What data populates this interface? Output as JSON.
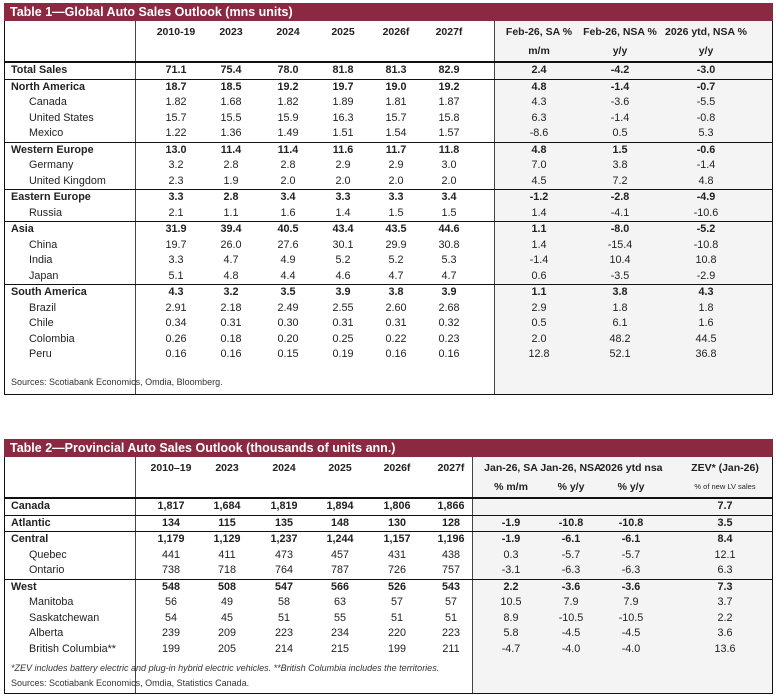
{
  "table1": {
    "title": "Table 1—Global Auto Sales Outlook (mns units)",
    "headers": [
      "2010-19",
      "2023",
      "2024",
      "2025",
      "2026f",
      "2027f",
      "Feb-26, SA %",
      "Feb-26, NSA %",
      "2026 ytd, NSA %"
    ],
    "subheaders": [
      "",
      "",
      "",
      "",
      "",
      "",
      "m/m",
      "y/y",
      "y/y"
    ],
    "rows": [
      {
        "label": "Total Sales",
        "bold": true,
        "indent": false,
        "values": [
          "71.1",
          "75.4",
          "78.0",
          "81.8",
          "81.3",
          "82.9",
          "2.4",
          "-4.2",
          "-3.0"
        ]
      },
      {
        "label": "North America",
        "bold": true,
        "indent": false,
        "values": [
          "18.7",
          "18.5",
          "19.2",
          "19.7",
          "19.0",
          "19.2",
          "4.8",
          "-1.4",
          "-0.7"
        ]
      },
      {
        "label": "Canada",
        "bold": false,
        "indent": true,
        "values": [
          "1.82",
          "1.68",
          "1.82",
          "1.89",
          "1.81",
          "1.87",
          "4.3",
          "-3.6",
          "-5.5"
        ]
      },
      {
        "label": "United States",
        "bold": false,
        "indent": true,
        "values": [
          "15.7",
          "15.5",
          "15.9",
          "16.3",
          "15.7",
          "15.8",
          "6.3",
          "-1.4",
          "-0.8"
        ]
      },
      {
        "label": "Mexico",
        "bold": false,
        "indent": true,
        "values": [
          "1.22",
          "1.36",
          "1.49",
          "1.51",
          "1.54",
          "1.57",
          "-8.6",
          "0.5",
          "5.3"
        ]
      },
      {
        "label": "Western Europe",
        "bold": true,
        "indent": false,
        "values": [
          "13.0",
          "11.4",
          "11.4",
          "11.6",
          "11.7",
          "11.8",
          "4.8",
          "1.5",
          "-0.6"
        ]
      },
      {
        "label": "Germany",
        "bold": false,
        "indent": true,
        "values": [
          "3.2",
          "2.8",
          "2.8",
          "2.9",
          "2.9",
          "3.0",
          "7.0",
          "3.8",
          "-1.4"
        ]
      },
      {
        "label": "United Kingdom",
        "bold": false,
        "indent": true,
        "values": [
          "2.3",
          "1.9",
          "2.0",
          "2.0",
          "2.0",
          "2.0",
          "4.5",
          "7.2",
          "4.8"
        ]
      },
      {
        "label": "Eastern Europe",
        "bold": true,
        "indent": false,
        "values": [
          "3.3",
          "2.8",
          "3.4",
          "3.3",
          "3.3",
          "3.4",
          "-1.2",
          "-2.8",
          "-4.9"
        ]
      },
      {
        "label": "Russia",
        "bold": false,
        "indent": true,
        "values": [
          "2.1",
          "1.1",
          "1.6",
          "1.4",
          "1.5",
          "1.5",
          "1.4",
          "-4.1",
          "-10.6"
        ]
      },
      {
        "label": "Asia",
        "bold": true,
        "indent": false,
        "values": [
          "31.9",
          "39.4",
          "40.5",
          "43.4",
          "43.5",
          "44.6",
          "1.1",
          "-8.0",
          "-5.2"
        ]
      },
      {
        "label": "China",
        "bold": false,
        "indent": true,
        "values": [
          "19.7",
          "26.0",
          "27.6",
          "30.1",
          "29.9",
          "30.8",
          "1.4",
          "-15.4",
          "-10.8"
        ]
      },
      {
        "label": "India",
        "bold": false,
        "indent": true,
        "values": [
          "3.3",
          "4.7",
          "4.9",
          "5.2",
          "5.2",
          "5.3",
          "-1.4",
          "10.4",
          "10.8"
        ]
      },
      {
        "label": "Japan",
        "bold": false,
        "indent": true,
        "values": [
          "5.1",
          "4.8",
          "4.4",
          "4.6",
          "4.7",
          "4.7",
          "0.6",
          "-3.5",
          "-2.9"
        ]
      },
      {
        "label": "South America",
        "bold": true,
        "indent": false,
        "values": [
          "4.3",
          "3.2",
          "3.5",
          "3.9",
          "3.8",
          "3.9",
          "1.1",
          "3.8",
          "4.3"
        ]
      },
      {
        "label": "Brazil",
        "bold": false,
        "indent": true,
        "values": [
          "2.91",
          "2.18",
          "2.49",
          "2.55",
          "2.60",
          "2.68",
          "2.9",
          "1.8",
          "1.8"
        ]
      },
      {
        "label": "Chile",
        "bold": false,
        "indent": true,
        "values": [
          "0.34",
          "0.31",
          "0.30",
          "0.31",
          "0.31",
          "0.32",
          "0.5",
          "6.1",
          "1.6"
        ]
      },
      {
        "label": "Colombia",
        "bold": false,
        "indent": true,
        "values": [
          "0.26",
          "0.18",
          "0.20",
          "0.25",
          "0.22",
          "0.23",
          "2.0",
          "48.2",
          "44.5"
        ]
      },
      {
        "label": "Peru",
        "bold": false,
        "indent": true,
        "values": [
          "0.16",
          "0.16",
          "0.15",
          "0.19",
          "0.16",
          "0.16",
          "12.8",
          "52.1",
          "36.8"
        ]
      }
    ],
    "sources": "Sources: Scotiabank Economics, Omdia, Bloomberg."
  },
  "table2": {
    "title": "Table 2—Provincial Auto Sales Outlook (thousands of units ann.)",
    "headers": [
      "2010–19",
      "2023",
      "2024",
      "2025",
      "2026f",
      "2027f",
      "Jan-26, SA",
      "Jan-26, NSA",
      "2026 ytd nsa",
      "ZEV* (Jan-26)"
    ],
    "subheaders": [
      "",
      "",
      "",
      "",
      "",
      "",
      "% m/m",
      "% y/y",
      "% y/y",
      "% of new LV sales"
    ],
    "rows": [
      {
        "label": "Canada",
        "bold": true,
        "indent": false,
        "values": [
          "1,817",
          "1,684",
          "1,819",
          "1,894",
          "1,806",
          "1,866",
          "",
          "",
          "",
          "7.7"
        ]
      },
      {
        "label": "Atlantic",
        "bold": true,
        "indent": false,
        "values": [
          "134",
          "115",
          "135",
          "148",
          "130",
          "128",
          "-1.9",
          "-10.8",
          "-10.8",
          "3.5"
        ]
      },
      {
        "label": "Central",
        "bold": true,
        "indent": false,
        "values": [
          "1,179",
          "1,129",
          "1,237",
          "1,244",
          "1,157",
          "1,196",
          "-1.9",
          "-6.1",
          "-6.1",
          "8.4"
        ]
      },
      {
        "label": "Quebec",
        "bold": false,
        "indent": true,
        "values": [
          "441",
          "411",
          "473",
          "457",
          "431",
          "438",
          "0.3",
          "-5.7",
          "-5.7",
          "12.1"
        ]
      },
      {
        "label": "Ontario",
        "bold": false,
        "indent": true,
        "values": [
          "738",
          "718",
          "764",
          "787",
          "726",
          "757",
          "-3.1",
          "-6.3",
          "-6.3",
          "6.3"
        ]
      },
      {
        "label": "West",
        "bold": true,
        "indent": false,
        "values": [
          "548",
          "508",
          "547",
          "566",
          "526",
          "543",
          "2.2",
          "-3.6",
          "-3.6",
          "7.3"
        ]
      },
      {
        "label": "Manitoba",
        "bold": false,
        "indent": true,
        "values": [
          "56",
          "49",
          "58",
          "63",
          "57",
          "57",
          "10.5",
          "7.9",
          "7.9",
          "3.7"
        ]
      },
      {
        "label": "Saskatchewan",
        "bold": false,
        "indent": true,
        "values": [
          "54",
          "45",
          "51",
          "55",
          "51",
          "51",
          "8.9",
          "-10.5",
          "-10.5",
          "2.2"
        ]
      },
      {
        "label": "Alberta",
        "bold": false,
        "indent": true,
        "values": [
          "239",
          "209",
          "223",
          "234",
          "220",
          "223",
          "5.8",
          "-4.5",
          "-4.5",
          "3.6"
        ]
      },
      {
        "label": "British Columbia**",
        "bold": false,
        "indent": true,
        "values": [
          "199",
          "205",
          "214",
          "215",
          "199",
          "211",
          "-4.7",
          "-4.0",
          "-4.0",
          "13.6"
        ]
      }
    ],
    "footnote": "*ZEV includes battery electric and plug-in hybrid electric vehicles. **British Columbia includes the territories.",
    "sources": "Sources: Scotiabank Economics, Omdia, Statistics Canada."
  }
}
